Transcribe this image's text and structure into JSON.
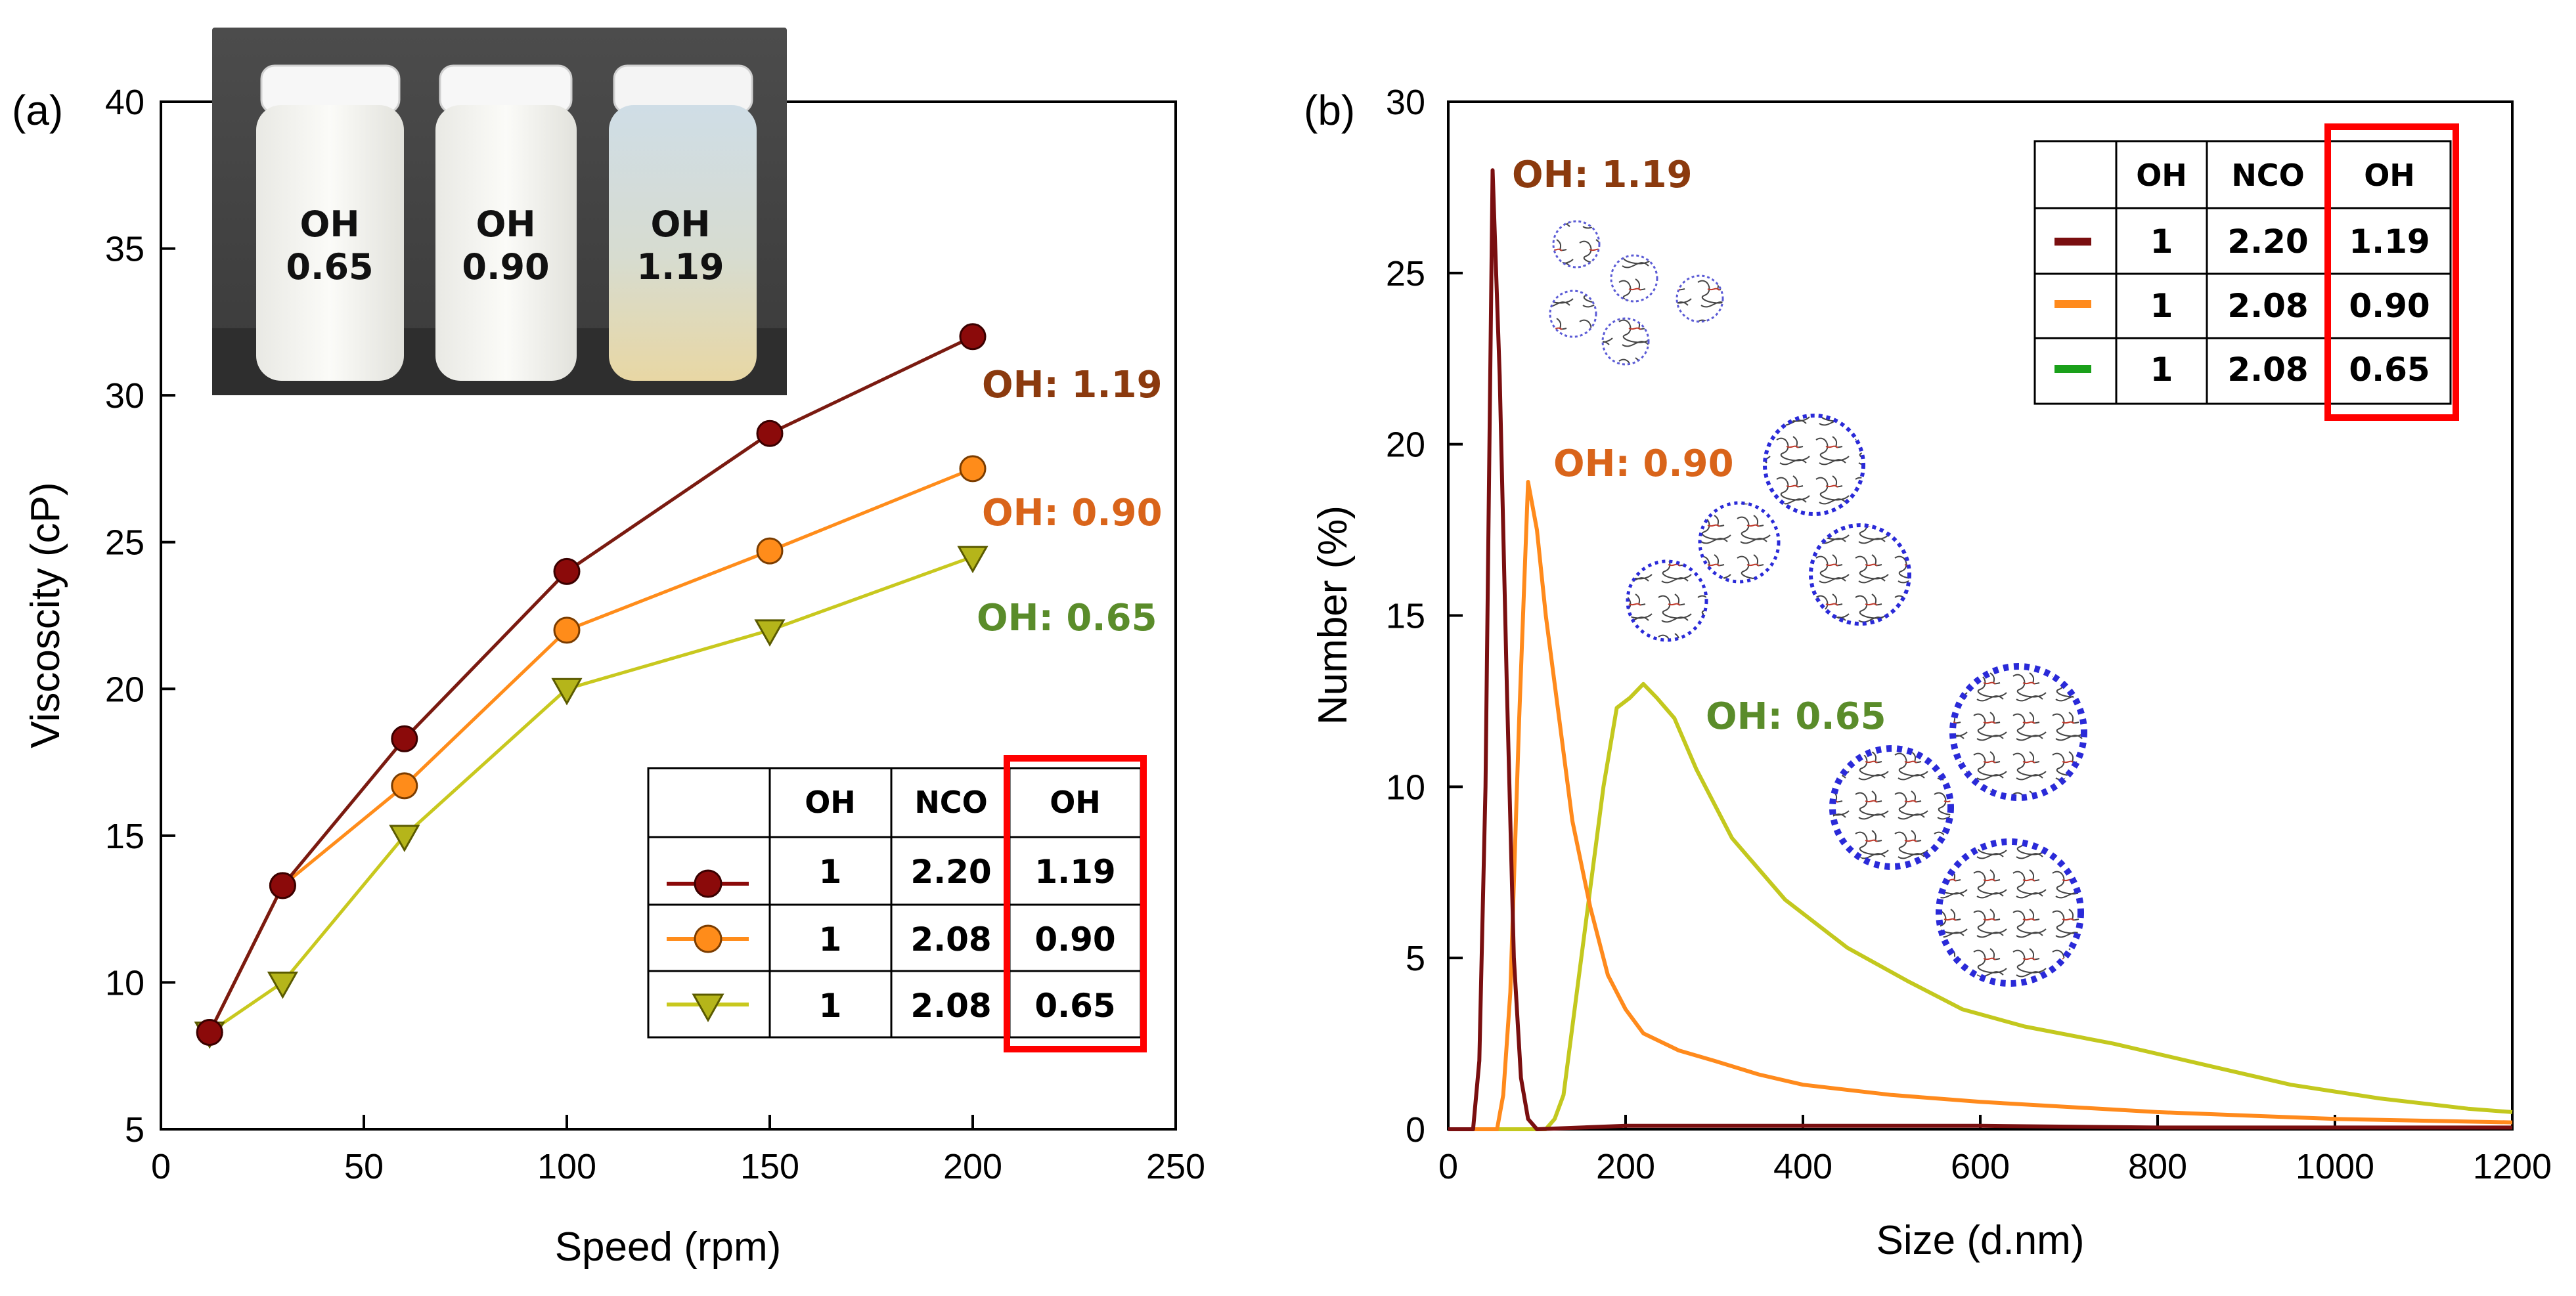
{
  "panels": {
    "a": "(a)",
    "b": "(b)"
  },
  "photo": {
    "jars": [
      {
        "line1": "OH",
        "line2": "0.65"
      },
      {
        "line1": "OH",
        "line2": "0.90"
      },
      {
        "line1": "OH",
        "line2": "1.19"
      }
    ]
  },
  "colors": {
    "s119_marker": "#8b0a0a",
    "s119_line": "#7a1a10",
    "s090": "#ff8c1a",
    "s065": "#c8c81e",
    "label119": "#8b3a0e",
    "label090": "#d9641a",
    "label065": "#5a8c2a",
    "b119": "#7a0f10",
    "b090": "#ff8a1c",
    "b065": "#c3c81e",
    "highlight": "#ff0000"
  },
  "chart_data": [
    {
      "type": "line",
      "title": "",
      "xlabel": "Speed (rpm)",
      "ylabel": "Viscoscity (cP)",
      "xlim": [
        0,
        250
      ],
      "ylim": [
        5,
        40
      ],
      "xticks": [
        "0",
        "50",
        "100",
        "150",
        "200",
        "250"
      ],
      "yticks": [
        "5",
        "10",
        "15",
        "20",
        "25",
        "30",
        "35",
        "40"
      ],
      "series": [
        {
          "name": "OH: 1.19",
          "marker": "circle",
          "x": [
            12,
            30,
            60,
            100,
            150,
            200
          ],
          "y": [
            8.3,
            13.3,
            18.3,
            24.0,
            28.7,
            32.0
          ]
        },
        {
          "name": "OH: 0.90",
          "marker": "circle",
          "x": [
            12,
            30,
            60,
            100,
            150,
            200
          ],
          "y": [
            8.3,
            13.3,
            16.7,
            22.0,
            24.7,
            27.5
          ]
        },
        {
          "name": "OH: 0.65",
          "marker": "triangle-down",
          "x": [
            12,
            30,
            60,
            100,
            150,
            200
          ],
          "y": [
            8.3,
            10.0,
            15.0,
            20.0,
            22.0,
            24.5
          ]
        }
      ],
      "legend_table": {
        "headers": [
          "",
          "OH",
          "NCO",
          "OH"
        ],
        "rows": [
          {
            "oh": "1",
            "nco": "2.20",
            "ratio": "1.19"
          },
          {
            "oh": "1",
            "nco": "2.08",
            "ratio": "0.90"
          },
          {
            "oh": "1",
            "nco": "2.08",
            "ratio": "0.65"
          }
        ]
      }
    },
    {
      "type": "line",
      "title": "",
      "xlabel": "Size (d.nm)",
      "ylabel": "Number (%)",
      "xlim": [
        0,
        1200
      ],
      "ylim": [
        0,
        30
      ],
      "xticks": [
        "0",
        "200",
        "400",
        "600",
        "800",
        "1000",
        "1200"
      ],
      "yticks": [
        "0",
        "5",
        "10",
        "15",
        "20",
        "25",
        "30"
      ],
      "series": [
        {
          "name": "OH: 1.19",
          "x": [
            0,
            28,
            35,
            42,
            50,
            58,
            66,
            74,
            82,
            90,
            100,
            200,
            400,
            600,
            800,
            1000,
            1200
          ],
          "y": [
            0,
            0,
            2,
            10,
            28,
            22,
            13,
            5,
            1.5,
            0.3,
            0,
            0.1,
            0.1,
            0.1,
            0.05,
            0.05,
            0.05
          ]
        },
        {
          "name": "OH: 0.90",
          "x": [
            0,
            55,
            62,
            70,
            80,
            90,
            100,
            110,
            125,
            140,
            160,
            180,
            200,
            220,
            260,
            300,
            350,
            400,
            500,
            600,
            700,
            800,
            900,
            1000,
            1100,
            1200
          ],
          "y": [
            0,
            0,
            1,
            4,
            12,
            18.9,
            17.5,
            15,
            12,
            9,
            6.5,
            4.5,
            3.5,
            2.8,
            2.3,
            2.0,
            1.6,
            1.3,
            1.0,
            0.8,
            0.65,
            0.5,
            0.4,
            0.3,
            0.25,
            0.2
          ]
        },
        {
          "name": "OH: 0.65",
          "x": [
            0,
            110,
            120,
            130,
            140,
            150,
            160,
            175,
            190,
            205,
            220,
            235,
            255,
            280,
            320,
            380,
            450,
            520,
            580,
            650,
            750,
            850,
            950,
            1050,
            1150,
            1200
          ],
          "y": [
            0,
            0,
            0.3,
            1,
            3,
            5,
            7,
            10,
            12.3,
            12.6,
            13.0,
            12.6,
            12.0,
            10.5,
            8.5,
            6.7,
            5.3,
            4.3,
            3.5,
            3.0,
            2.5,
            1.9,
            1.3,
            0.9,
            0.6,
            0.5
          ]
        }
      ],
      "series_labels": [
        "OH: 1.19",
        "OH: 0.90",
        "OH: 0.65"
      ],
      "legend_table": {
        "headers": [
          "",
          "OH",
          "NCO",
          "OH"
        ],
        "rows": [
          {
            "oh": "1",
            "nco": "2.20",
            "ratio": "1.19"
          },
          {
            "oh": "1",
            "nco": "2.08",
            "ratio": "0.90"
          },
          {
            "oh": "1",
            "nco": "2.08",
            "ratio": "0.65"
          }
        ]
      }
    }
  ]
}
